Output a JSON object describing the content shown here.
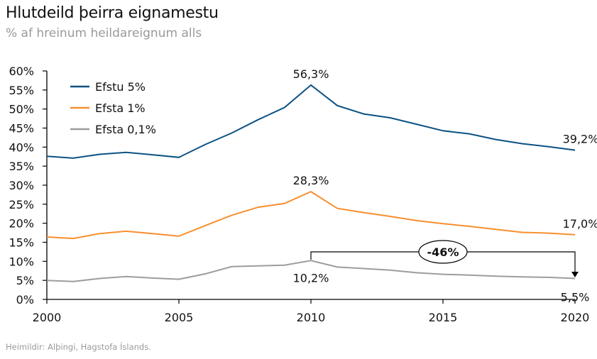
{
  "header": {
    "title": "Hlutdeild þeirra eignamestu",
    "subtitle": "% af hreinum heildareignum alls"
  },
  "footer": {
    "source": "Heimildir: Alþingi, Hagstofa Íslands."
  },
  "chart_data": {
    "type": "line",
    "title": "Hlutdeild þeirra eignamestu",
    "subtitle": "% af hreinum heildareignum alls",
    "x": [
      2000,
      2001,
      2002,
      2003,
      2004,
      2005,
      2006,
      2007,
      2008,
      2009,
      2010,
      2011,
      2012,
      2013,
      2014,
      2015,
      2016,
      2017,
      2018,
      2019,
      2020
    ],
    "xlim": [
      2000,
      2020
    ],
    "xticks": [
      "2000",
      "2005",
      "2010",
      "2015",
      "2020"
    ],
    "ylim": [
      0,
      60
    ],
    "yticks": [
      "0%",
      "5%",
      "10%",
      "15%",
      "20%",
      "25%",
      "30%",
      "35%",
      "40%",
      "45%",
      "50%",
      "55%",
      "60%"
    ],
    "grid": false,
    "legend_placement": "top-left",
    "series": [
      {
        "name": "Efstu 5%",
        "color": "#0b5283",
        "values": [
          37.6,
          37.1,
          38.1,
          38.6,
          38.0,
          37.3,
          40.7,
          43.7,
          47.2,
          50.4,
          56.3,
          50.9,
          48.7,
          47.7,
          46.0,
          44.3,
          43.5,
          42.0,
          40.9,
          40.1,
          39.2
        ]
      },
      {
        "name": "Efsta 1%",
        "color": "#f78f2e",
        "values": [
          16.4,
          16.0,
          17.3,
          17.9,
          17.3,
          16.6,
          19.4,
          22.1,
          24.2,
          25.2,
          28.3,
          23.9,
          22.8,
          21.8,
          20.7,
          19.9,
          19.2,
          18.4,
          17.6,
          17.4,
          17.0
        ]
      },
      {
        "name": "Efsta 0,1%",
        "color": "#9d9d9d",
        "values": [
          5.0,
          4.7,
          5.5,
          6.0,
          5.6,
          5.3,
          6.7,
          8.6,
          8.8,
          9.0,
          10.2,
          8.5,
          8.1,
          7.7,
          7.0,
          6.6,
          6.4,
          6.1,
          5.9,
          5.8,
          5.5
        ]
      }
    ],
    "annotations": [
      {
        "x": 2010,
        "y": 56.3,
        "text": "56,3%"
      },
      {
        "x": 2020,
        "y": 39.2,
        "text": "39,2%"
      },
      {
        "x": 2010,
        "y": 28.3,
        "text": "28,3%"
      },
      {
        "x": 2020,
        "y": 17.0,
        "text": "17,0%"
      },
      {
        "x": 2010,
        "y": 10.2,
        "text": "10,2%"
      },
      {
        "x": 2020,
        "y": 5.5,
        "text": "5,5%"
      }
    ],
    "change_callout": {
      "from_x": 2010,
      "to_x": 2020,
      "text": "-46%"
    }
  }
}
